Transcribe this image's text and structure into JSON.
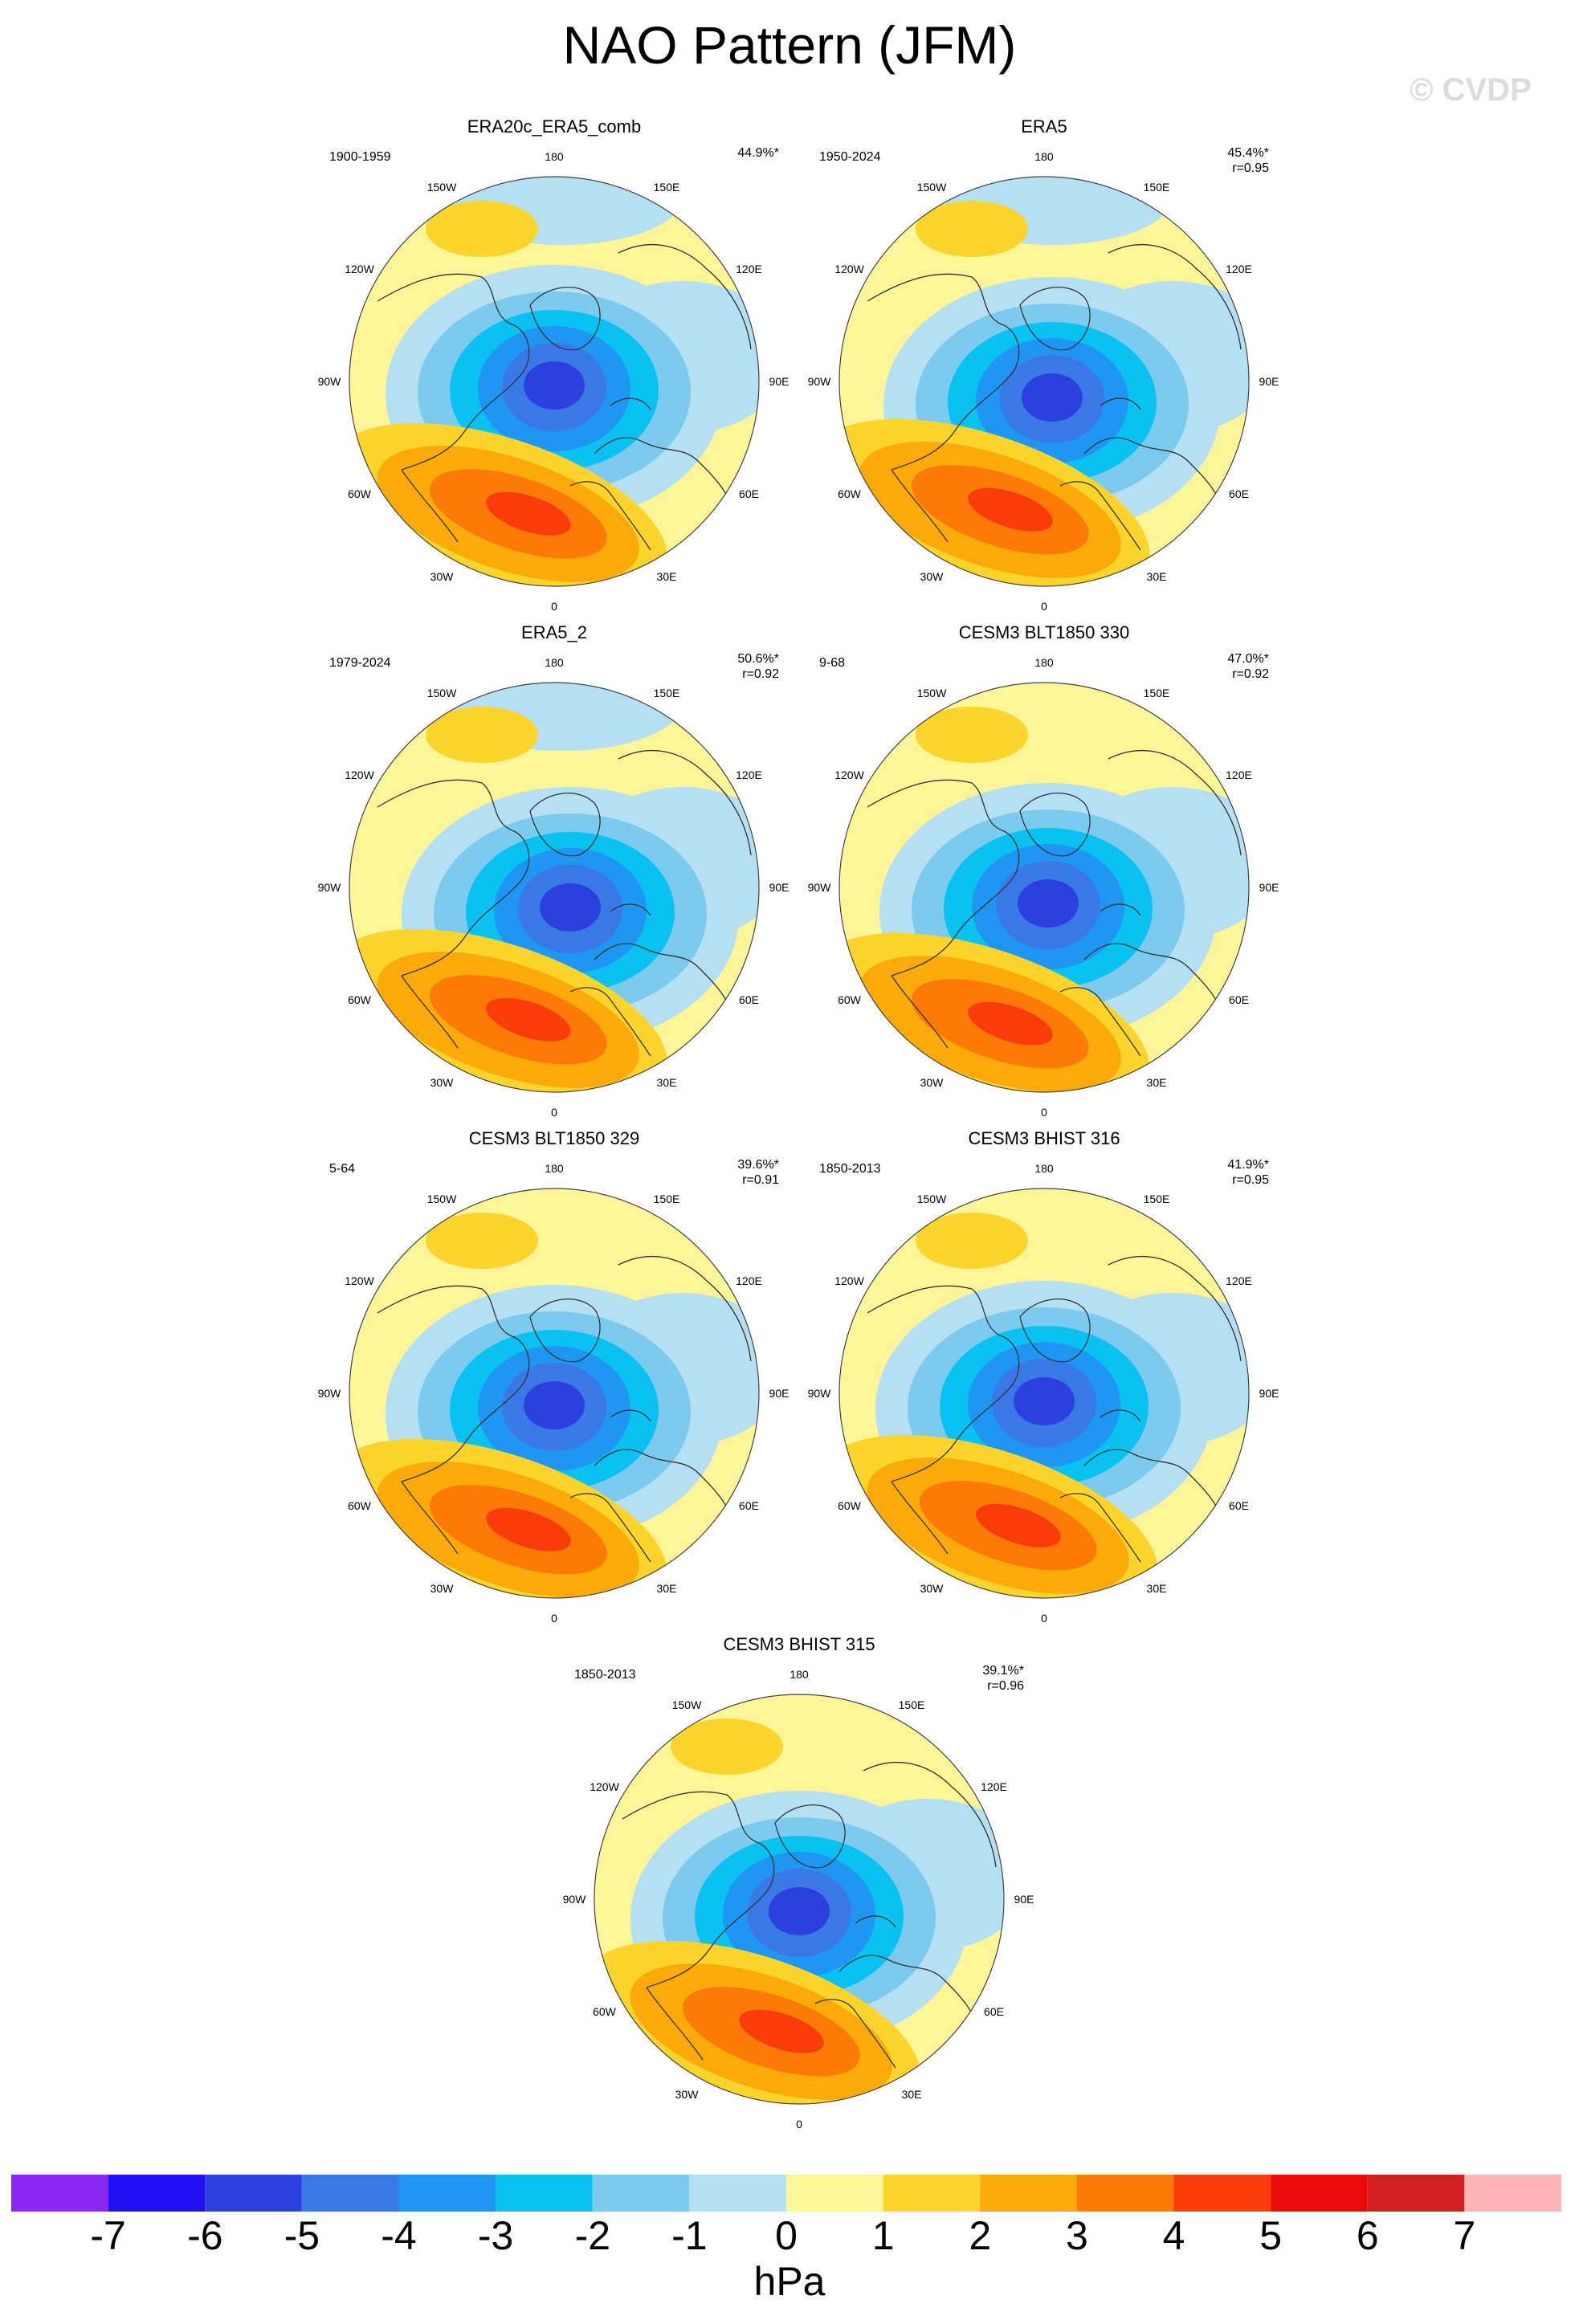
{
  "figure": {
    "title": "NAO Pattern (JFM)",
    "watermark": "© CVDP",
    "units": "hPa"
  },
  "lon_labels": [
    "180",
    "150E",
    "120E",
    "90E",
    "60E",
    "30E",
    "0",
    "30W",
    "60W",
    "90W",
    "120W",
    "150W"
  ],
  "panels": [
    {
      "title": "ERA20c_ERA5_comb",
      "years": "1900-1959",
      "pct": "44.9%*",
      "r": ""
    },
    {
      "title": "ERA5",
      "years": "1950-2024",
      "pct": "45.4%*",
      "r": "r=0.95"
    },
    {
      "title": "ERA5_2",
      "years": "1979-2024",
      "pct": "50.6%*",
      "r": "r=0.92"
    },
    {
      "title": "CESM3 BLT1850 330",
      "years": "9-68",
      "pct": "47.0%*",
      "r": "r=0.92"
    },
    {
      "title": "CESM3 BLT1850 329",
      "years": "5-64",
      "pct": "39.6%*",
      "r": "r=0.91"
    },
    {
      "title": "CESM3 BHIST 316",
      "years": "1850-2013",
      "pct": "41.9%*",
      "r": "r=0.95"
    },
    {
      "title": "CESM3 BHIST 315",
      "years": "1850-2013",
      "pct": "39.1%*",
      "r": "r=0.96"
    }
  ],
  "colorbar": {
    "colors": [
      "#8b27f0",
      "#2010f2",
      "#2c40e0",
      "#3a78e6",
      "#1e96f2",
      "#0ac2f2",
      "#7ccbef",
      "#b5dff2",
      "#fdf597",
      "#fcd42c",
      "#fcaa0a",
      "#fb7a08",
      "#fa3c0a",
      "#ea0b0b",
      "#d11f1f",
      "#fdb5b5"
    ],
    "levels": [
      "-7",
      "-6",
      "-5",
      "-4",
      "-3",
      "-2",
      "-1",
      "0",
      "1",
      "2",
      "3",
      "4",
      "5",
      "6",
      "7"
    ]
  }
}
